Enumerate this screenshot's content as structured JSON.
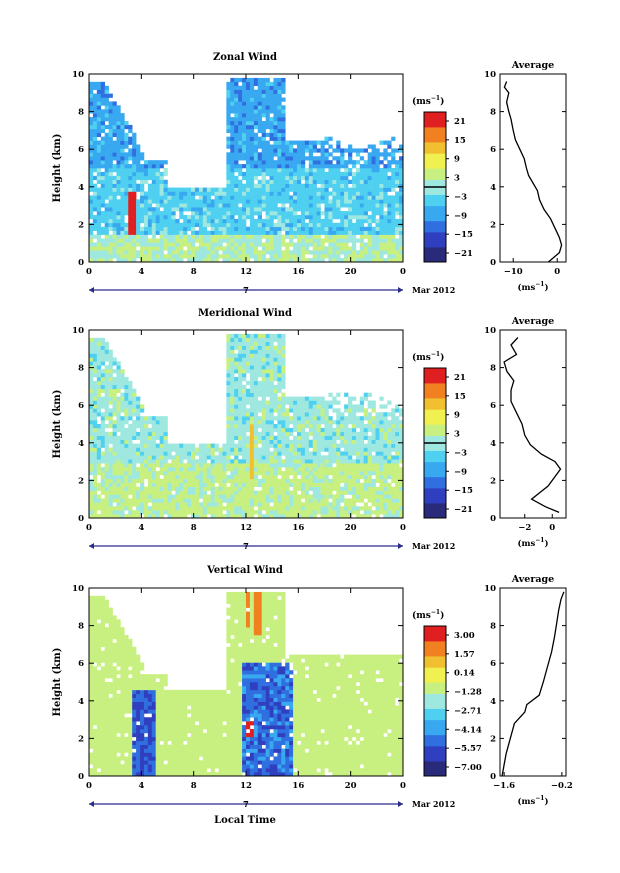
{
  "colors": {
    "zonal_meridional_scale": [
      "#2a2a7a",
      "#2f3fbf",
      "#2f6fe0",
      "#38a8f0",
      "#4fd0f0",
      "#9ee8e0",
      "#c8f080",
      "#f0f050",
      "#f0c030",
      "#f08020",
      "#e02020"
    ],
    "vertical_scale": [
      "#2a2a7a",
      "#2f3fbf",
      "#2f6fe0",
      "#38a8f0",
      "#4fd0f0",
      "#9ee8e0",
      "#c8f080",
      "#f0f050",
      "#f0c030",
      "#f08020",
      "#e02020"
    ]
  },
  "chart_data": [
    {
      "type": "heatmap",
      "panel": "zonal",
      "title": "Zonal Wind",
      "ylabel": "Height (km)",
      "x_ticks": [
        "0",
        "4",
        "8",
        "12",
        "16",
        "20",
        "0"
      ],
      "y_ticks": [
        "0",
        "2",
        "4",
        "6",
        "8",
        "10"
      ],
      "xlim": [
        0,
        24
      ],
      "ylim": [
        0,
        10
      ],
      "date_marker": "7",
      "date_label": "Mar 2012",
      "colorbar": {
        "unit_label": "(ms",
        "unit_exp": "−1",
        "unit_close": ")",
        "ticks": [
          "21",
          "15",
          "9",
          "3",
          "−3",
          "−9",
          "−15",
          "−21"
        ],
        "range": [
          -24,
          24
        ]
      },
      "average": {
        "title": "Average",
        "xlabel_pre": "(ms",
        "xlabel_exp": "−1",
        "xlabel_post": ")",
        "x_ticks": [
          "−10",
          "0"
        ],
        "x_tick_values": [
          -10,
          0
        ],
        "xlim": [
          -13,
          2
        ],
        "y_ticks": [
          "0",
          "2",
          "4",
          "6",
          "8",
          "10"
        ],
        "profile": [
          [
            -2,
            0.0
          ],
          [
            0.5,
            0.5
          ],
          [
            1.0,
            0.9
          ],
          [
            0.5,
            1.3
          ],
          [
            -0.5,
            1.8
          ],
          [
            -1.5,
            2.3
          ],
          [
            -3,
            2.8
          ],
          [
            -4,
            3.3
          ],
          [
            -4.5,
            3.8
          ],
          [
            -5.5,
            4.2
          ],
          [
            -6.5,
            4.6
          ],
          [
            -7,
            5.0
          ],
          [
            -7.5,
            5.5
          ],
          [
            -8.5,
            6.0
          ],
          [
            -9.5,
            6.5
          ],
          [
            -10,
            7.0
          ],
          [
            -10.5,
            7.6
          ],
          [
            -11,
            8.0
          ],
          [
            -11.5,
            8.5
          ],
          [
            -11,
            9.0
          ],
          [
            -12,
            9.3
          ],
          [
            -11.5,
            9.6
          ]
        ]
      }
    },
    {
      "type": "heatmap",
      "panel": "meridional",
      "title": "Meridional Wind",
      "ylabel": "Height (km)",
      "x_ticks": [
        "0",
        "4",
        "8",
        "12",
        "16",
        "20",
        "0"
      ],
      "y_ticks": [
        "0",
        "2",
        "4",
        "6",
        "8",
        "10"
      ],
      "xlim": [
        0,
        24
      ],
      "ylim": [
        0,
        10
      ],
      "date_marker": "7",
      "date_label": "Mar 2012",
      "colorbar": {
        "unit_label": "(ms",
        "unit_exp": "−1",
        "unit_close": ")",
        "ticks": [
          "21",
          "15",
          "9",
          "3",
          "−3",
          "−9",
          "−15",
          "−21"
        ],
        "range": [
          -24,
          24
        ]
      },
      "average": {
        "title": "Average",
        "xlabel_pre": "(ms",
        "xlabel_exp": "−1",
        "xlabel_post": ")",
        "x_ticks": [
          "−2",
          "0"
        ],
        "x_tick_values": [
          -2,
          0
        ],
        "xlim": [
          -3.8,
          1.0
        ],
        "y_ticks": [
          "0",
          "2",
          "4",
          "6",
          "8",
          "10"
        ],
        "profile": [
          [
            0.5,
            0.3
          ],
          [
            -0.5,
            0.6
          ],
          [
            -1.5,
            1.0
          ],
          [
            -1.0,
            1.3
          ],
          [
            -0.3,
            1.7
          ],
          [
            0.2,
            2.2
          ],
          [
            0.6,
            2.6
          ],
          [
            0.2,
            3.0
          ],
          [
            -0.8,
            3.4
          ],
          [
            -1.6,
            3.9
          ],
          [
            -2.0,
            4.4
          ],
          [
            -2.2,
            5.0
          ],
          [
            -2.6,
            5.6
          ],
          [
            -3.0,
            6.2
          ],
          [
            -3.0,
            6.8
          ],
          [
            -2.8,
            7.3
          ],
          [
            -3.3,
            7.8
          ],
          [
            -3.5,
            8.3
          ],
          [
            -2.6,
            8.7
          ],
          [
            -3.0,
            9.2
          ],
          [
            -2.5,
            9.6
          ]
        ]
      }
    },
    {
      "type": "heatmap",
      "panel": "vertical",
      "title": "Vertical Wind",
      "ylabel": "Height (km)",
      "xlabel": "Local Time",
      "x_ticks": [
        "0",
        "4",
        "8",
        "12",
        "16",
        "20",
        "0"
      ],
      "y_ticks": [
        "0",
        "2",
        "4",
        "6",
        "8",
        "10"
      ],
      "xlim": [
        0,
        24
      ],
      "ylim": [
        0,
        10
      ],
      "date_marker": "7",
      "date_label": "Mar 2012",
      "colorbar": {
        "unit_label": "(ms",
        "unit_exp": "−1",
        "unit_close": ")",
        "ticks": [
          "3.00",
          "1.57",
          "0.14",
          "−1.28",
          "−2.71",
          "−4.14",
          "−5.57",
          "−7.00"
        ],
        "range": [
          -7.7,
          3.7
        ]
      },
      "average": {
        "title": "Average",
        "xlabel_pre": "(ms",
        "xlabel_exp": "−1",
        "xlabel_post": ")",
        "x_ticks": [
          "−1.6",
          "−0.2"
        ],
        "x_tick_values": [
          -1.6,
          -0.2
        ],
        "xlim": [
          -1.7,
          -0.1
        ],
        "y_ticks": [
          "0",
          "2",
          "4",
          "6",
          "8",
          "10"
        ],
        "profile": [
          [
            -1.65,
            0.0
          ],
          [
            -1.6,
            0.6
          ],
          [
            -1.55,
            1.2
          ],
          [
            -1.45,
            2.0
          ],
          [
            -1.35,
            2.8
          ],
          [
            -1.1,
            3.4
          ],
          [
            -1.05,
            3.8
          ],
          [
            -0.75,
            4.3
          ],
          [
            -0.65,
            5.0
          ],
          [
            -0.55,
            5.8
          ],
          [
            -0.45,
            6.6
          ],
          [
            -0.38,
            7.4
          ],
          [
            -0.32,
            8.2
          ],
          [
            -0.28,
            8.8
          ],
          [
            -0.22,
            9.4
          ],
          [
            -0.15,
            9.8
          ]
        ]
      }
    }
  ]
}
